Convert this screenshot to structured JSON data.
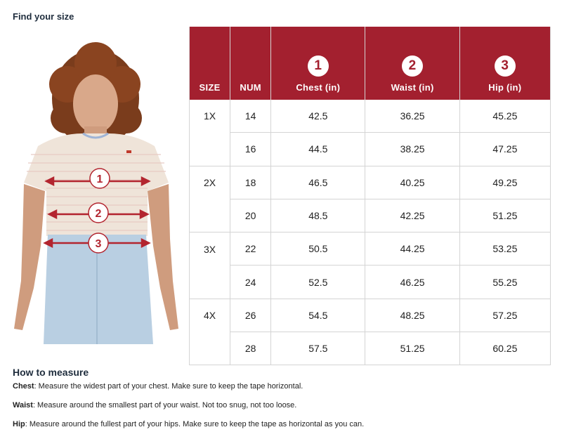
{
  "title": "Find your size",
  "table": {
    "headers": {
      "size": "SIZE",
      "num": "NUM",
      "chest": {
        "badge": "1",
        "label": "Chest (in)"
      },
      "waist": {
        "badge": "2",
        "label": "Waist (in)"
      },
      "hip": {
        "badge": "3",
        "label": "Hip (in)"
      }
    },
    "rows": [
      {
        "size": "1X",
        "num": "14",
        "chest": "42.5",
        "waist": "36.25",
        "hip": "45.25"
      },
      {
        "size": "",
        "num": "16",
        "chest": "44.5",
        "waist": "38.25",
        "hip": "47.25"
      },
      {
        "size": "2X",
        "num": "18",
        "chest": "46.5",
        "waist": "40.25",
        "hip": "49.25"
      },
      {
        "size": "",
        "num": "20",
        "chest": "48.5",
        "waist": "42.25",
        "hip": "51.25"
      },
      {
        "size": "3X",
        "num": "22",
        "chest": "50.5",
        "waist": "44.25",
        "hip": "53.25"
      },
      {
        "size": "",
        "num": "24",
        "chest": "52.5",
        "waist": "46.25",
        "hip": "55.25"
      },
      {
        "size": "4X",
        "num": "26",
        "chest": "54.5",
        "waist": "48.25",
        "hip": "57.25"
      },
      {
        "size": "",
        "num": "28",
        "chest": "57.5",
        "waist": "51.25",
        "hip": "60.25"
      }
    ]
  },
  "figure": {
    "markers": [
      "1",
      "2",
      "3"
    ]
  },
  "how_to_measure": {
    "heading": "How to measure",
    "items": [
      {
        "term": "Chest",
        "text": ": Measure the widest part of your chest. Make sure to keep the tape horizontal."
      },
      {
        "term": "Waist",
        "text": ": Measure around the smallest part of your waist. Not too snug, not too loose."
      },
      {
        "term": "Hip",
        "text": ": Measure around the fullest part of your hips. Make sure to keep the tape as horizontal as you can."
      }
    ]
  },
  "colors": {
    "header_red": "#a3202f",
    "title_navy": "#1f2d3d",
    "border": "#d4d4d4"
  }
}
